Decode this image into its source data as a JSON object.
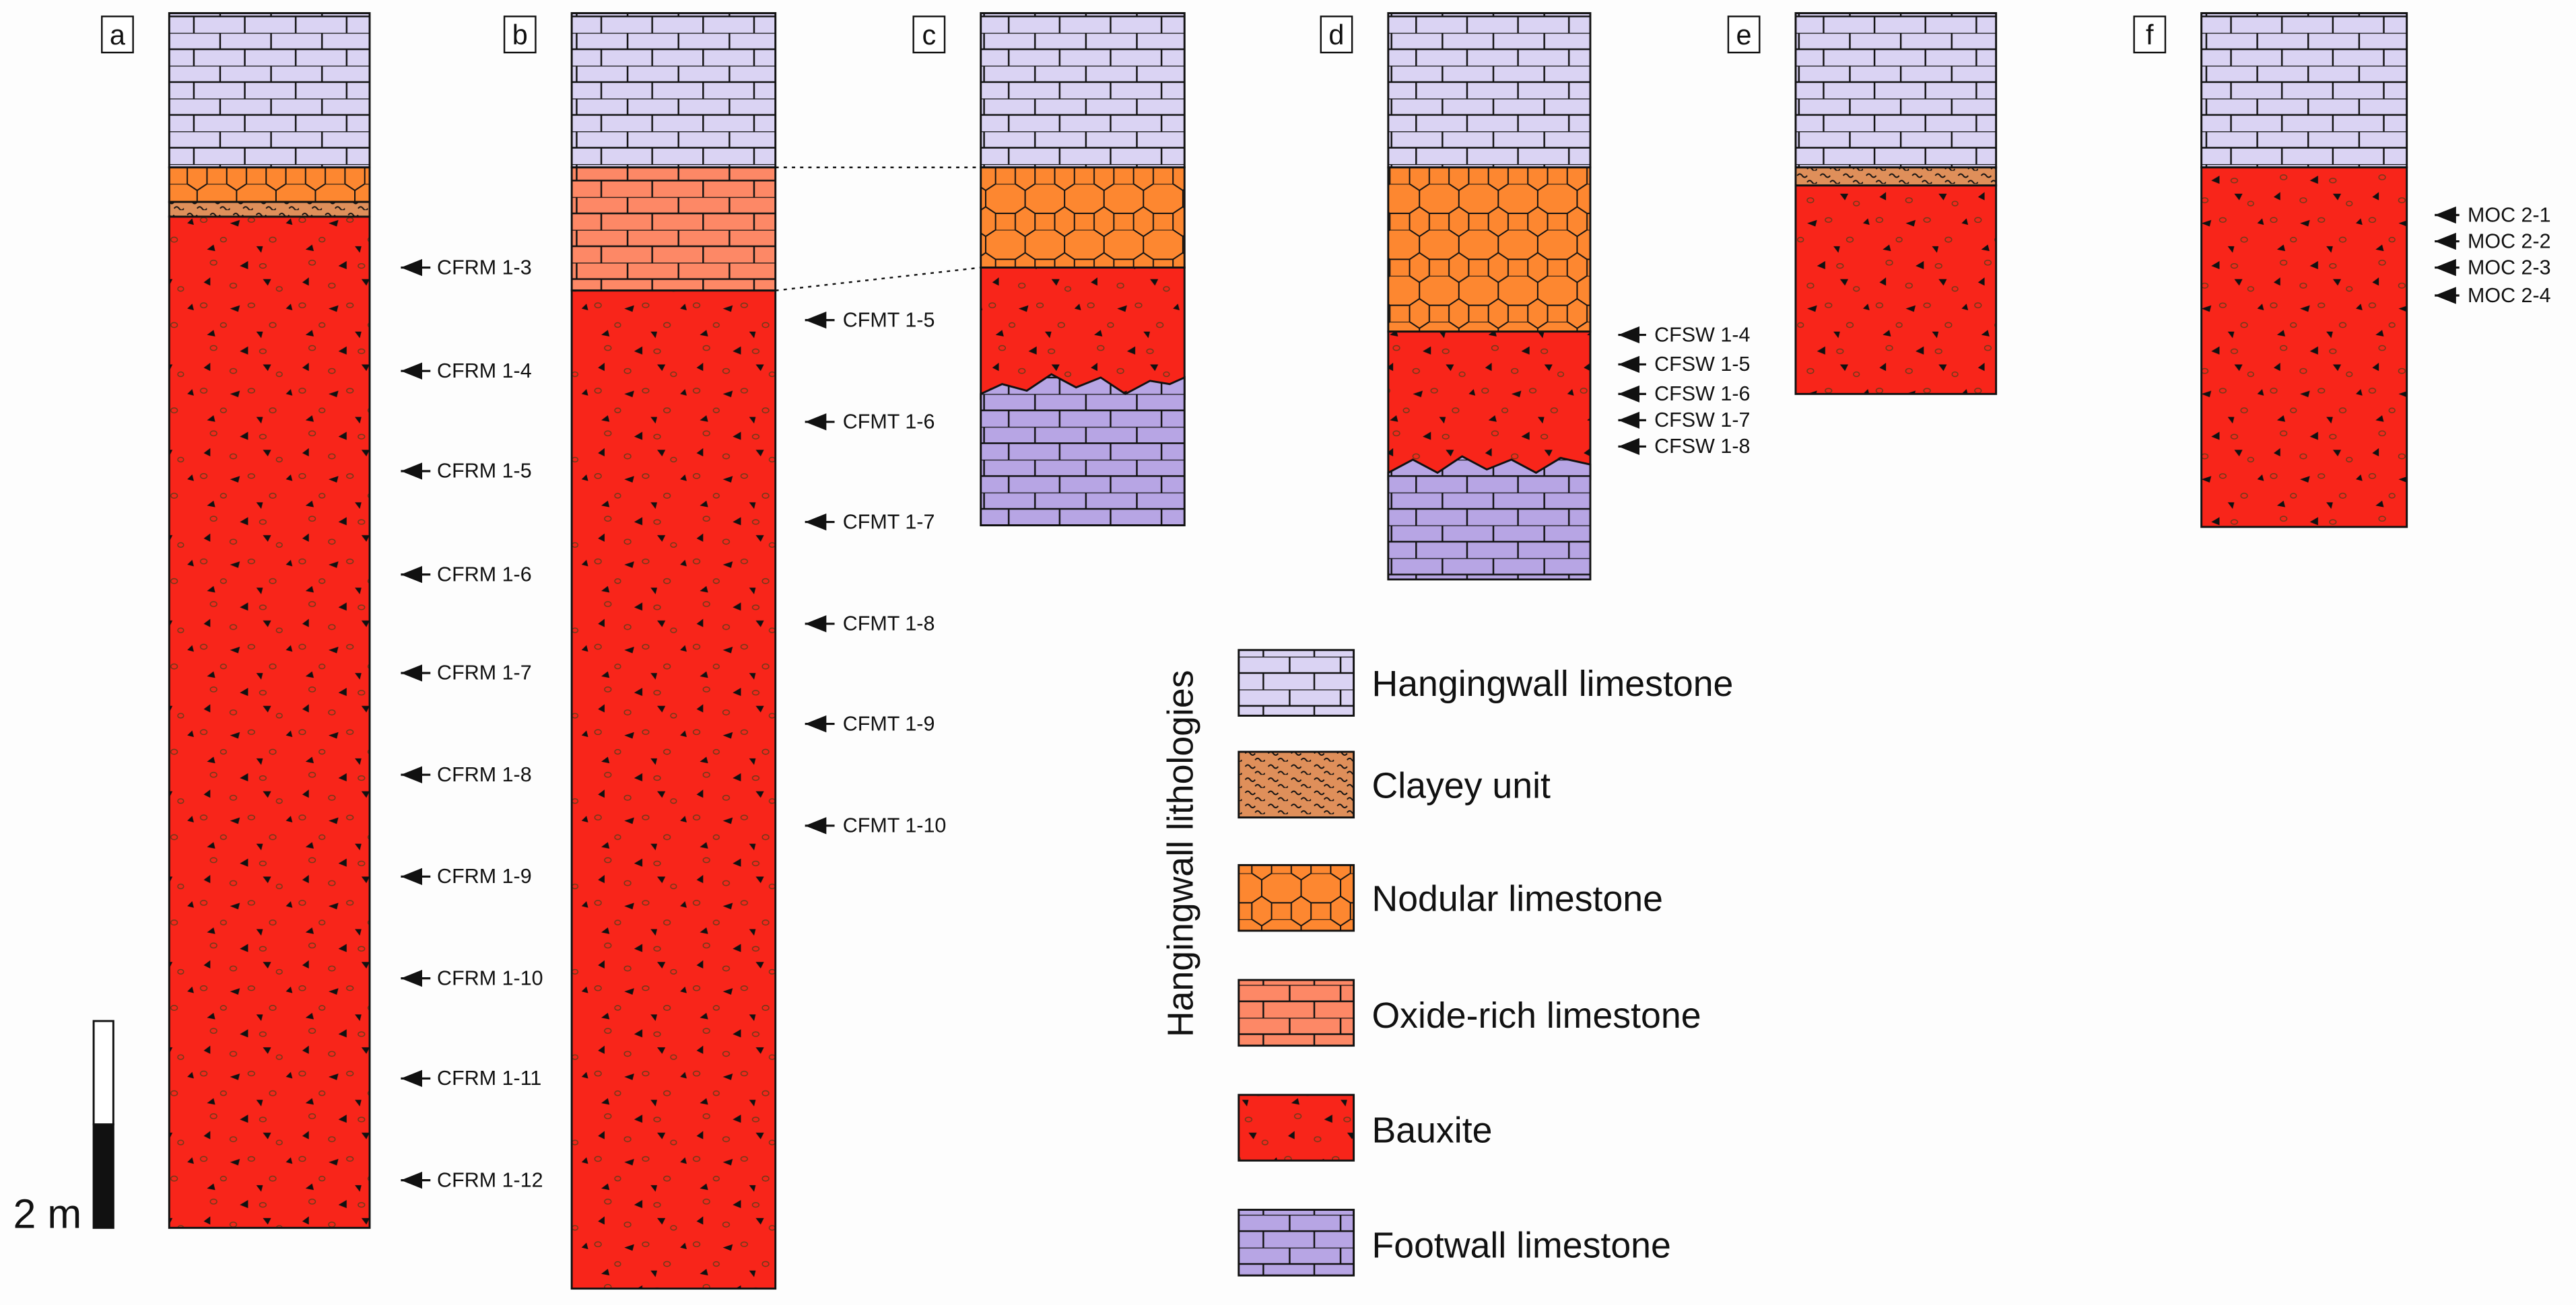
{
  "colors": {
    "hangingwall": "#dad3f3",
    "clayey": "#df8f5a",
    "nodular": "#fd8730",
    "oxide": "#fd8866",
    "bauxite": "#f8251a",
    "footwall": "#b7a5e4"
  },
  "columns": [
    {
      "label": "a",
      "samples": [
        "CFRM 1-3",
        "CFRM 1-4",
        "CFRM 1-5",
        "CFRM 1-6",
        "CFRM 1-7",
        "CFRM 1-8",
        "CFRM 1-9",
        "CFRM 1-10",
        "CFRM 1-11",
        "CFRM 1-12"
      ]
    },
    {
      "label": "b",
      "samples": [
        "CFMT 1-5",
        "CFMT 1-6",
        "CFMT 1-7",
        "CFMT 1-8",
        "CFMT 1-9",
        "CFMT 1-10"
      ]
    },
    {
      "label": "c",
      "samples": []
    },
    {
      "label": "d",
      "samples": [
        "CFSW 1-4",
        "CFSW 1-5",
        "CFSW 1-6",
        "CFSW 1-7",
        "CFSW 1-8"
      ]
    },
    {
      "label": "e",
      "samples": []
    },
    {
      "label": "f",
      "samples": [
        "MOC 2-1",
        "MOC 2-2",
        "MOC 2-3",
        "MOC 2-4"
      ]
    }
  ],
  "scale_bar": {
    "label": "2 m"
  },
  "legend": {
    "title": "Hangingwall lithologies",
    "items": [
      "Hangingwall limestone",
      "Clayey unit",
      "Nodular limestone",
      "Oxide-rich limestone",
      "Bauxite",
      "Footwall limestone"
    ]
  }
}
